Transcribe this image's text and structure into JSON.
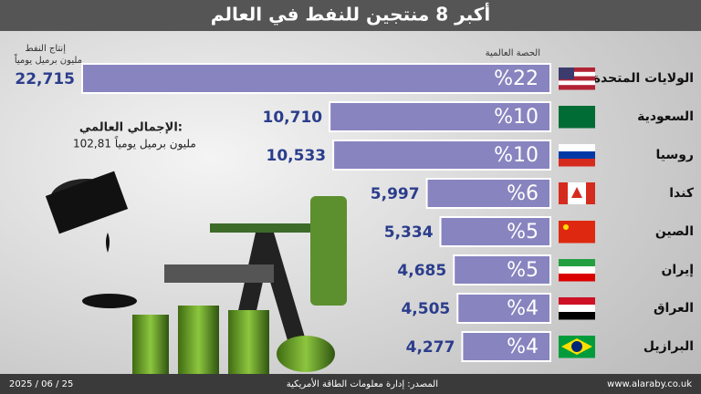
{
  "chart_data": {
    "type": "bar",
    "title": "أكبر 8 منتجين للنفط في العالم",
    "share_header": "الحصة العالمية",
    "value_header": [
      "إنتاج النفط",
      "مليون برميل يومياً"
    ],
    "total_title": "الإجمالي العالمي:",
    "total_label": "102,81 مليون برميل يومياً",
    "categories": [
      "الولايات المتحدة",
      "السعودية",
      "روسيا",
      "كندا",
      "الصين",
      "إيران",
      "العراق",
      "البرازيل"
    ],
    "values": [
      22.715,
      10.71,
      10.533,
      5.997,
      5.334,
      4.685,
      4.505,
      4.277
    ],
    "value_labels": [
      "22,715",
      "10,710",
      "10,533",
      "5,997",
      "5,334",
      "4,685",
      "4,505",
      "4,277"
    ],
    "shares": [
      22,
      10,
      10,
      6,
      5,
      5,
      4,
      4
    ],
    "share_labels": [
      "%22",
      "%10",
      "%10",
      "%6",
      "%5",
      "%5",
      "%4",
      "%4"
    ],
    "color": "#8884bf",
    "source": "المصدر: إدارة معلومات الطاقة الأمريكية",
    "date": "2025 / 06 / 25",
    "website": "www.alaraby.co.uk"
  }
}
